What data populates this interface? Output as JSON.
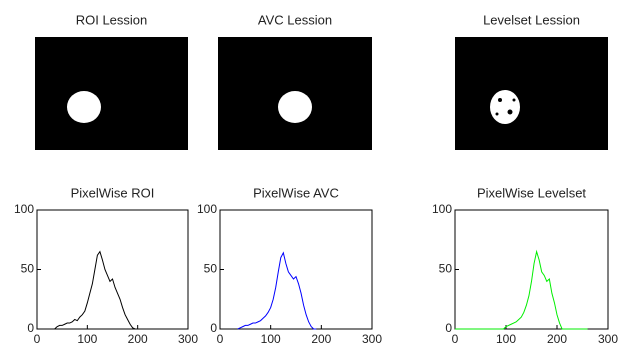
{
  "chart_data": [
    {
      "type": "image",
      "title": "ROI Lession"
    },
    {
      "type": "image",
      "title": "AVC Lession"
    },
    {
      "type": "image",
      "title": "Levelset Lession"
    },
    {
      "type": "line",
      "title": "PixelWise ROI",
      "color": "#000000",
      "x": [
        35,
        40,
        45,
        50,
        55,
        60,
        65,
        70,
        75,
        80,
        85,
        90,
        95,
        100,
        105,
        110,
        115,
        120,
        125,
        130,
        135,
        140,
        145,
        150,
        155,
        160,
        165,
        170,
        175,
        180,
        185,
        190,
        195
      ],
      "values": [
        0,
        2,
        3,
        3,
        4,
        5,
        5,
        6,
        8,
        7,
        10,
        12,
        15,
        22,
        30,
        38,
        50,
        62,
        65,
        58,
        50,
        45,
        40,
        42,
        35,
        30,
        25,
        18,
        12,
        8,
        4,
        1,
        0
      ],
      "xlim": [
        0,
        300
      ],
      "xticks": [
        0,
        100,
        200,
        300
      ],
      "ylim": [
        0,
        100
      ],
      "yticks": [
        0,
        50,
        100
      ]
    },
    {
      "type": "line",
      "title": "PixelWise AVC",
      "color": "#0000ff",
      "x": [
        35,
        40,
        45,
        50,
        55,
        60,
        65,
        70,
        75,
        80,
        85,
        90,
        95,
        100,
        105,
        110,
        115,
        120,
        125,
        130,
        135,
        140,
        145,
        150,
        155,
        160,
        165,
        170,
        175,
        180,
        185,
        190
      ],
      "values": [
        0,
        1,
        2,
        3,
        3,
        4,
        5,
        5,
        6,
        7,
        9,
        11,
        14,
        18,
        25,
        35,
        48,
        60,
        64,
        55,
        48,
        45,
        42,
        44,
        38,
        30,
        20,
        12,
        6,
        2,
        0,
        0
      ],
      "xlim": [
        0,
        300
      ],
      "xticks": [
        0,
        100,
        200,
        300
      ],
      "ylim": [
        0,
        100
      ],
      "yticks": [
        0,
        50,
        100
      ]
    },
    {
      "type": "line",
      "title": "PixelWise Levelset",
      "color": "#00ee00",
      "x": [
        0,
        95,
        100,
        105,
        110,
        115,
        120,
        125,
        130,
        135,
        140,
        145,
        150,
        155,
        160,
        165,
        170,
        175,
        180,
        185,
        190,
        195,
        200,
        205,
        210,
        260
      ],
      "values": [
        0,
        0,
        2,
        3,
        4,
        5,
        6,
        8,
        10,
        14,
        20,
        28,
        40,
        55,
        65,
        58,
        48,
        45,
        40,
        42,
        30,
        22,
        12,
        5,
        0,
        0
      ],
      "xlim": [
        0,
        300
      ],
      "xticks": [
        0,
        100,
        200,
        300
      ],
      "ylim": [
        0,
        100
      ],
      "yticks": [
        0,
        50,
        100
      ]
    }
  ]
}
